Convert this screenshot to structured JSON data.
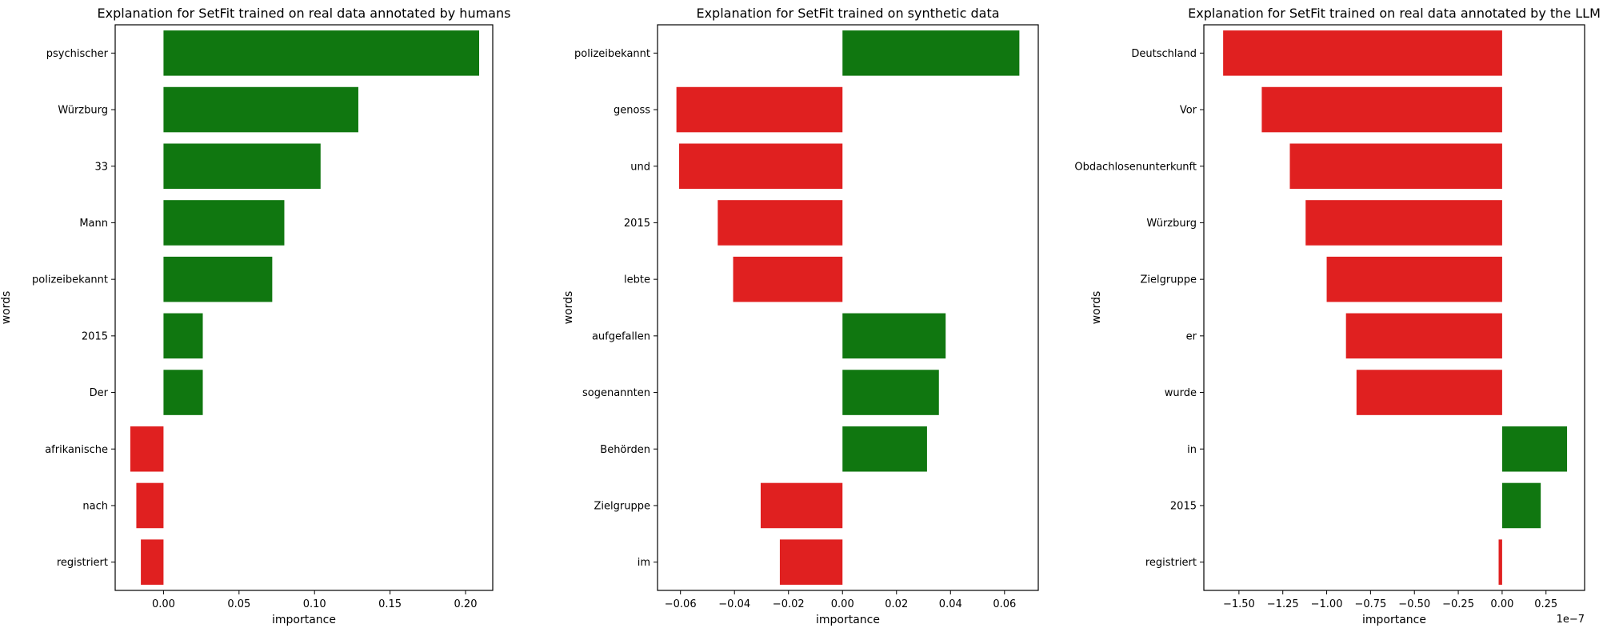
{
  "colors": {
    "positive": "#107710",
    "negative": "#e02020"
  },
  "chart_data": [
    {
      "type": "bar",
      "orientation": "horizontal",
      "title": "Explanation for SetFit trained on real data annotated by humans",
      "xlabel": "importance",
      "ylabel": "words",
      "categories": [
        "psychischer",
        "Würzburg",
        "33",
        "Mann",
        "polizeibekannt",
        "2015",
        "Der",
        "afrikanische",
        "nach",
        "registriert"
      ],
      "values": [
        0.209,
        0.129,
        0.104,
        0.08,
        0.072,
        0.026,
        0.026,
        -0.022,
        -0.018,
        -0.015
      ],
      "xlim": [
        -0.032,
        0.218
      ],
      "xticks": [
        0.0,
        0.05,
        0.1,
        0.15,
        0.2
      ],
      "xtick_labels": [
        "0.00",
        "0.05",
        "0.10",
        "0.15",
        "0.20"
      ],
      "offset_text": ""
    },
    {
      "type": "bar",
      "orientation": "horizontal",
      "title": "Explanation for SetFit trained on synthetic data",
      "xlabel": "importance",
      "ylabel": "words",
      "categories": [
        "polizeibekannt",
        "genoss",
        "und",
        "2015",
        "lebte",
        "aufgefallen",
        "sogenannten",
        "Behörden",
        "Zielgruppe",
        "im"
      ],
      "values": [
        0.0655,
        -0.0615,
        -0.0605,
        -0.0462,
        -0.0405,
        0.0382,
        0.0357,
        0.0313,
        -0.0303,
        -0.0232
      ],
      "xlim": [
        -0.0685,
        0.0725
      ],
      "xticks": [
        -0.06,
        -0.04,
        -0.02,
        0.0,
        0.02,
        0.04,
        0.06
      ],
      "xtick_labels": [
        "−0.06",
        "−0.04",
        "−0.02",
        "0.00",
        "0.02",
        "0.04",
        "0.06"
      ],
      "offset_text": ""
    },
    {
      "type": "bar",
      "orientation": "horizontal",
      "title": "Explanation for SetFit trained on real data annotated by the LLM",
      "xlabel": "importance",
      "ylabel": "words",
      "categories": [
        "Deutschland",
        "Vor",
        "Obdachlosenunterkunft",
        "Würzburg",
        "Zielgruppe",
        "er",
        "wurde",
        "in",
        "2015",
        "registriert"
      ],
      "values": [
        -1.59,
        -1.37,
        -1.21,
        -1.12,
        -1.0,
        -0.89,
        -0.83,
        0.37,
        0.22,
        -0.02
      ],
      "xlim": [
        -1.7,
        0.47
      ],
      "xticks": [
        -1.5,
        -1.25,
        -1.0,
        -0.75,
        -0.5,
        -0.25,
        0.0,
        0.25
      ],
      "xtick_labels": [
        "−1.50",
        "−1.25",
        "−1.00",
        "−0.75",
        "−0.50",
        "−0.25",
        "0.00",
        "0.25"
      ],
      "offset_text": "1e−7"
    }
  ]
}
